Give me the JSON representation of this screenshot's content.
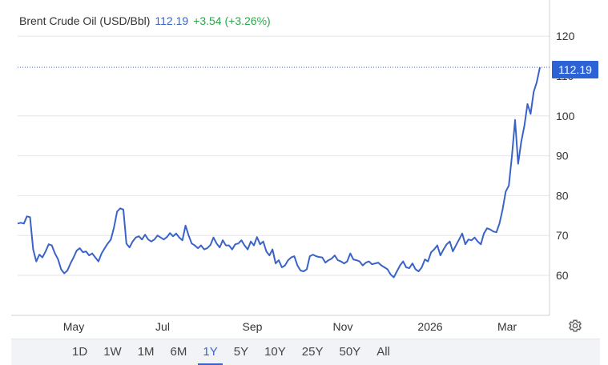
{
  "header": {
    "name": "Brent Crude Oil (USD/Bbl)",
    "price": "112.19",
    "change": "+3.54 (+3.26%)"
  },
  "price_tag": "112.19",
  "ranges": [
    "1D",
    "1W",
    "1M",
    "6M",
    "1Y",
    "5Y",
    "10Y",
    "25Y",
    "50Y",
    "All"
  ],
  "active_range": "1Y",
  "colors": {
    "line": "#3a63c8",
    "tag": "#2d62d6",
    "change": "#2aa84a"
  },
  "icons": {
    "settings": "gear-icon"
  },
  "chart_data": {
    "type": "line",
    "title": "Brent Crude Oil (USD/Bbl)",
    "xlabel": "",
    "ylabel": "",
    "x_tick_labels": [
      "May",
      "Jul",
      "Sep",
      "Nov",
      "2026",
      "Mar"
    ],
    "y_ticks": [
      60,
      70,
      80,
      90,
      100,
      120
    ],
    "ylim": [
      50,
      125
    ],
    "grid": true,
    "current_value": 112.19,
    "series": [
      {
        "values": [
          73.0,
          73.2,
          73.0,
          74.8,
          74.6,
          66.5,
          63.5,
          65.2,
          64.5,
          66.0,
          67.8,
          67.5,
          65.5,
          64.0,
          61.5,
          60.5,
          61.2,
          63.0,
          64.5,
          66.2,
          66.8,
          65.8,
          66.0,
          65.0,
          65.5,
          64.5,
          63.5,
          65.5,
          66.8,
          68.0,
          69.0,
          72.0,
          76.0,
          76.8,
          76.5,
          68.0,
          67.0,
          68.5,
          69.5,
          69.8,
          69.0,
          70.2,
          69.0,
          68.5,
          69.0,
          70.0,
          69.5,
          69.0,
          69.6,
          70.6,
          69.8,
          70.5,
          69.5,
          68.8,
          72.5,
          70.0,
          68.0,
          67.5,
          66.8,
          67.5,
          66.5,
          66.8,
          67.6,
          69.5,
          68.0,
          67.0,
          68.8,
          67.5,
          67.5,
          66.5,
          67.8,
          68.0,
          68.8,
          67.5,
          66.5,
          68.5,
          67.5,
          69.6,
          67.8,
          68.5,
          66.0,
          65.0,
          66.5,
          63.0,
          63.8,
          62.0,
          62.5,
          63.8,
          64.5,
          64.8,
          62.5,
          61.2,
          61.0,
          61.5,
          64.8,
          65.2,
          64.8,
          64.6,
          64.5,
          63.2,
          63.8,
          64.2,
          65.0,
          63.8,
          63.5,
          63.0,
          63.5,
          65.5,
          64.0,
          63.8,
          63.5,
          62.5,
          63.2,
          63.5,
          62.8,
          63.0,
          63.2,
          62.5,
          62.0,
          61.5,
          60.2,
          59.5,
          61.0,
          62.5,
          63.5,
          62.0,
          61.8,
          63.0,
          61.5,
          61.0,
          62.0,
          64.0,
          63.5,
          65.8,
          66.5,
          67.5,
          65.0,
          66.5,
          67.8,
          68.5,
          66.0,
          67.5,
          69.0,
          70.5,
          67.8,
          69.0,
          68.8,
          69.5,
          68.5,
          67.8,
          70.5,
          71.8,
          71.5,
          71.0,
          70.8,
          73.0,
          76.5,
          81.0,
          82.5,
          90.0,
          99.0,
          88.0,
          93.5,
          97.5,
          103.0,
          100.5,
          106.0,
          108.5,
          112.19
        ]
      }
    ]
  }
}
